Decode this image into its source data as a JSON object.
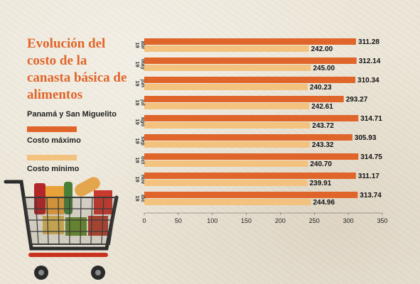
{
  "title": "Evolución del costo de la canasta básica de alimentos",
  "region": "Panamá y San Miguelito",
  "legend": [
    {
      "label": "Costo máximo",
      "color": "#e0652a"
    },
    {
      "label": "Costo mínimo",
      "color": "#f3c27e"
    }
  ],
  "chart_data": {
    "type": "bar",
    "orientation": "horizontal",
    "categories": [
      "abr 19",
      "may 19",
      "jun 19",
      "jul 19",
      "ago 19",
      "sep 19",
      "oct 19",
      "nov 19",
      "dic 19"
    ],
    "series": [
      {
        "name": "Costo máximo",
        "color": "#e0652a",
        "values": [
          311.28,
          312.14,
          310.34,
          293.27,
          314.71,
          305.93,
          314.75,
          311.17,
          313.74
        ]
      },
      {
        "name": "Costo mínimo",
        "color": "#f3c27e",
        "values": [
          242.0,
          245.0,
          240.23,
          242.61,
          243.72,
          243.32,
          240.7,
          239.91,
          244.96
        ]
      }
    ],
    "xlim": [
      0,
      350
    ],
    "xticks": [
      0,
      50,
      100,
      150,
      200,
      250,
      300,
      350
    ],
    "grid": false
  }
}
